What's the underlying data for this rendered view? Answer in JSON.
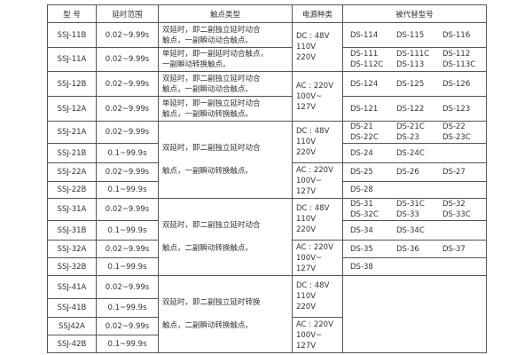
{
  "headers": [
    "型 号",
    "延时范围",
    "触点类型",
    "电源种类",
    "被代替型号"
  ],
  "rows": [
    {
      "model": "SSJ-11B",
      "range": "0.02~9.99s",
      "contact": [
        "双延时，即二副独立延时动合",
        "触点，一副瞬动动合触点。"
      ],
      "replaced": [
        "DS-114",
        "DS-115",
        "DS-116"
      ]
    },
    {
      "model": "SSJ-11A",
      "range": "0.02~9.99s",
      "contact": [
        "单延时，即一副延时动合触点，",
        "一副瞬动转换触点。"
      ],
      "replaced": [
        "DS-111",
        "DS-111C",
        "DS-112",
        "DS-112C",
        "DS-113",
        "DS-113C"
      ]
    },
    {
      "model": "SSJ-12B",
      "range": "0.02~9.99s",
      "contact": [
        "双延时，即二副独立延时动合",
        "触点，一副瞬动动合触点。"
      ],
      "replaced": [
        "DS-124",
        "DS-125",
        "DS-126"
      ]
    },
    {
      "model": "SSJ-12A",
      "range": "0.02~9.99s",
      "contact": [
        "单延时，即一副独立延时动合",
        "触点，一副瞬动转换触点。"
      ],
      "replaced": [
        "DS-121",
        "DS-122",
        "DS-123"
      ]
    },
    {
      "model": "SSJ-21A",
      "range": "0.02~9.99s",
      "replaced": [
        "DS-21",
        "DS-21C",
        "DS-22",
        "DS-22C",
        "DS-23",
        "DS-23C"
      ]
    },
    {
      "model": "SSJ-21B",
      "range": "0.1~99.9s",
      "replaced": [
        "DS-24",
        "DS-24C"
      ]
    },
    {
      "model": "SSJ-22A",
      "range": "0.02~9.99s",
      "replaced": [
        "DS-25",
        "DS-26",
        "DS-27"
      ]
    },
    {
      "model": "SSJ-22B",
      "range": "0.1~99.9s",
      "replaced": [
        "DS-28"
      ]
    },
    {
      "model": "SSJ-31A",
      "range": "0.02~9.99s",
      "replaced": [
        "DS-31",
        "DS-31C",
        "DS-32",
        "DS-32C",
        "DS-33",
        "DS-33C"
      ]
    },
    {
      "model": "SSJ-31B",
      "range": "0.1~99.9s",
      "replaced": [
        "DS-34",
        "DS-34C"
      ]
    },
    {
      "model": "SSJ-32A",
      "range": "0.02~9.99s",
      "replaced": [
        "DS-35",
        "DS-36",
        "DS-37"
      ]
    },
    {
      "model": "SSJ-32B",
      "range": "0.1~99.9s",
      "replaced": [
        "DS-38"
      ]
    },
    {
      "model": "SSJ-41A",
      "range": "0.02~9.99s"
    },
    {
      "model": "SSJ-41B",
      "range": "0.1~99.9s"
    },
    {
      "model": "SSJ42A",
      "range": "0.02~9.99s"
    },
    {
      "model": "SSJ-42B",
      "range": "0.1~99.9s"
    }
  ],
  "group_contacts": [
    [
      "双延时，即二副独立延时动合",
      "触点，一副瞬动转换触点。"
    ],
    [
      "双延时，即二副独立延时动合",
      "触点，二副瞬动转换触点。"
    ],
    [
      "双延时，即二副独立延时转换",
      "触点，二副瞬动转换触点。"
    ]
  ],
  "power": {
    "dc": [
      "DC : 48V",
      "110V",
      "220V"
    ],
    "ac": [
      "AC : 220V",
      "100V~",
      "127V"
    ]
  }
}
